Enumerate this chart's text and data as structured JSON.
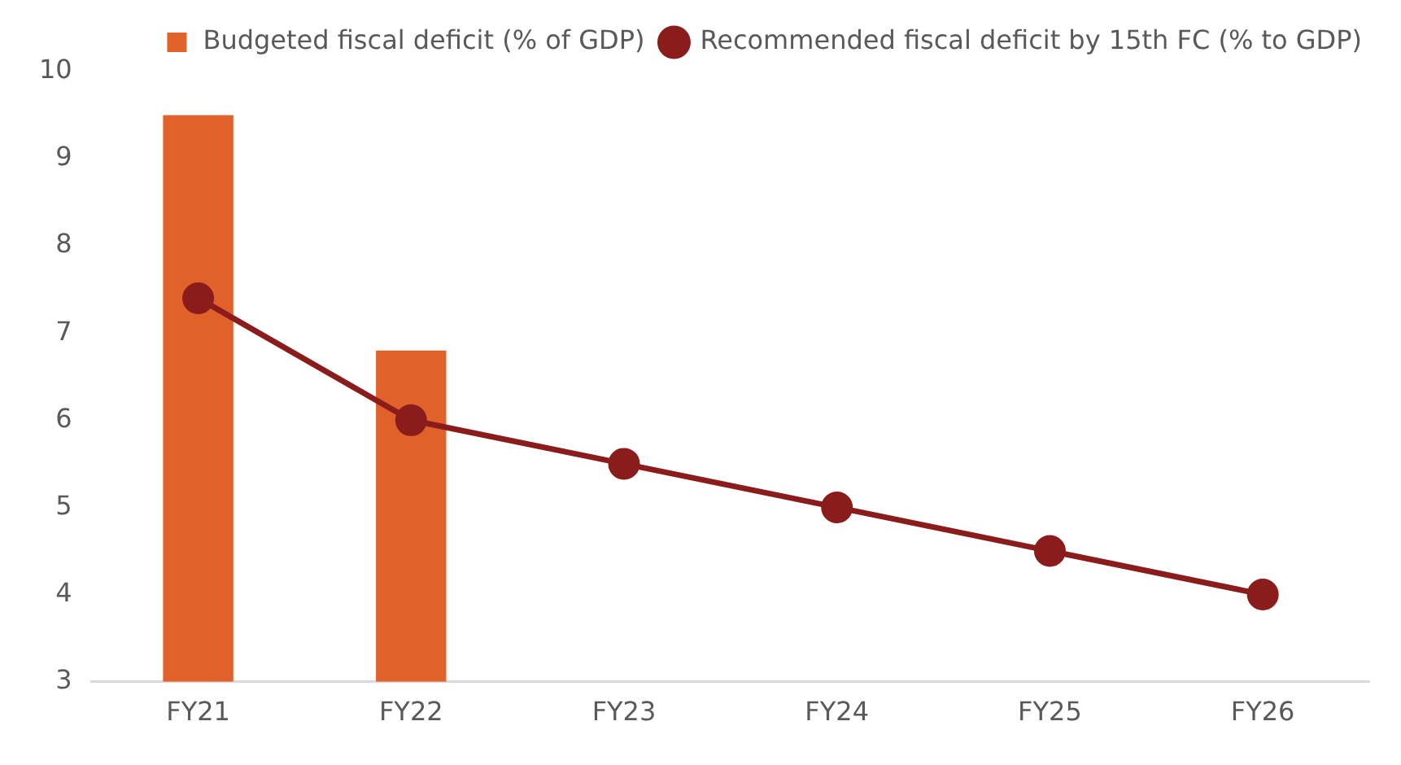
{
  "chart_data": {
    "type": "bar",
    "categories": [
      "FY21",
      "FY22",
      "FY23",
      "FY24",
      "FY25",
      "FY26"
    ],
    "series": [
      {
        "name": "Budgeted fiscal deficit (% of GDP)",
        "color": "#e0622a",
        "values": [
          9.5,
          6.8,
          null,
          null,
          null,
          null
        ]
      },
      {
        "name": "Recommended fiscal deficit by 15th FC (% to GDP)",
        "type": "line",
        "color": "#8b1c1c",
        "values": [
          7.4,
          6,
          5.5,
          5,
          4.5,
          4
        ]
      }
    ],
    "ylim": [
      3,
      10
    ],
    "yticks": [
      3,
      4,
      5,
      6,
      7,
      8,
      9,
      10
    ],
    "grid": false,
    "legend": "top right",
    "marker": "circle",
    "line_style": "solid"
  }
}
